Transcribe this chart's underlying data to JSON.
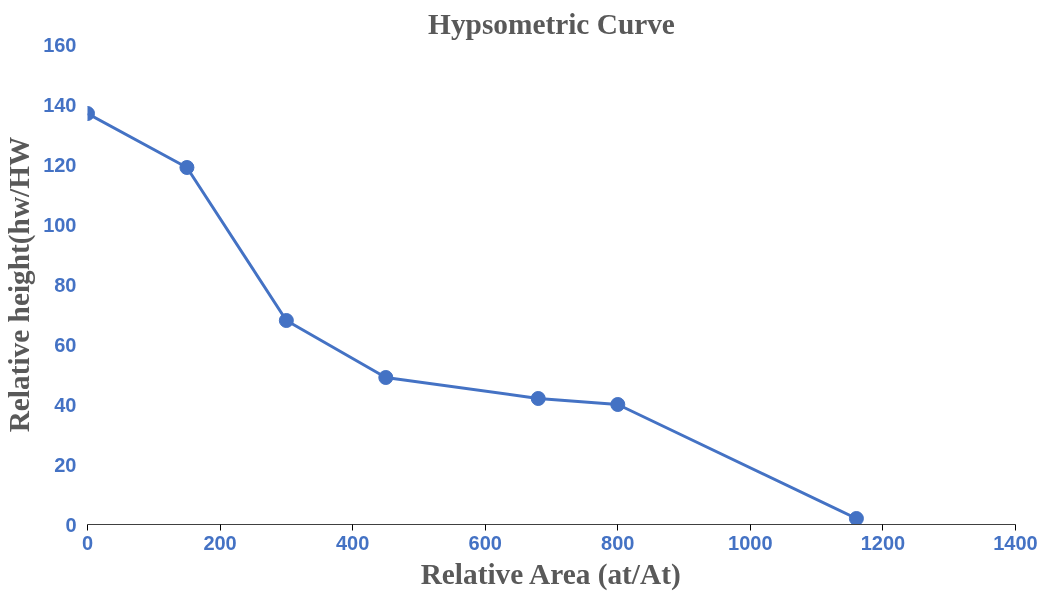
{
  "chart_data": {
    "type": "line",
    "title": "Hypsometric Curve",
    "xlabel": "Relative Area (at/At)",
    "ylabel": "Relative height(hw/HW",
    "x": [
      0,
      150,
      300,
      450,
      680,
      800,
      1160
    ],
    "series": [
      {
        "color": "#4472c4",
        "values": [
          137,
          119,
          68,
          49,
          42,
          40,
          2
        ]
      }
    ],
    "xlim": [
      0,
      1400
    ],
    "xticks": [
      0,
      200,
      400,
      600,
      800,
      1000,
      1200,
      1400
    ],
    "ylim": [
      0,
      160
    ],
    "yticks": [
      0,
      20,
      40,
      60,
      80,
      100,
      120,
      140,
      160
    ],
    "grid": false,
    "marker": "circle",
    "line_style": "solid"
  }
}
